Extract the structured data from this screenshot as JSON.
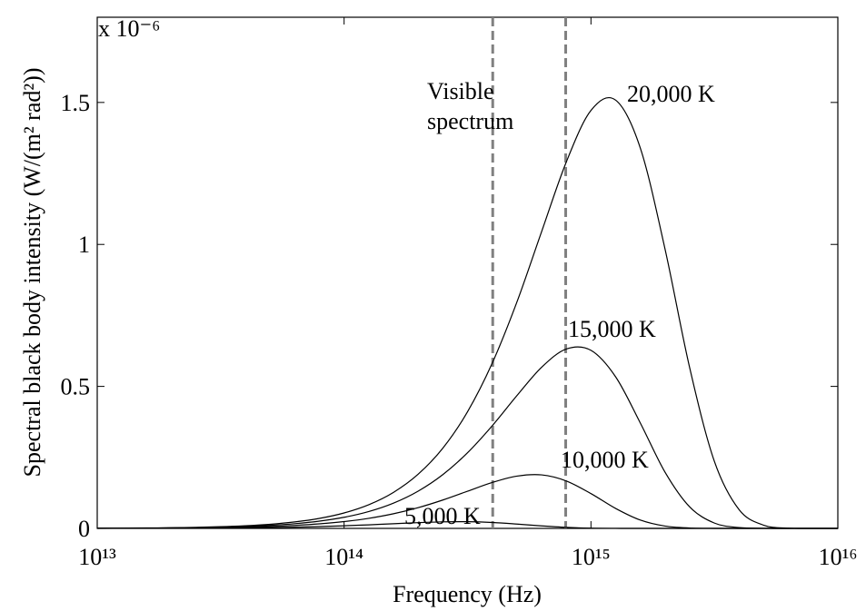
{
  "chart_data": {
    "type": "line",
    "xlabel": "Frequency (Hz)",
    "ylabel": "Spectral black body intensity (W/(m² rad²))",
    "y_multiplier": "x 10⁻⁶",
    "xscale": "log",
    "xlim": [
      10000000000000.0,
      1e+16
    ],
    "xticks": [
      {
        "value": 10000000000000.0,
        "label": "10¹³"
      },
      {
        "value": 100000000000000.0,
        "label": "10¹⁴"
      },
      {
        "value": 1000000000000000.0,
        "label": "10¹⁵"
      },
      {
        "value": 1e+16,
        "label": "10¹⁶"
      }
    ],
    "ylim": [
      0,
      1.8
    ],
    "yticks": [
      0,
      0.5,
      1,
      1.5
    ],
    "x": [
      10000000000000.0,
      12590000000000.0,
      15850000000000.0,
      19950000000000.0,
      25120000000000.0,
      31620000000000.0,
      39810000000000.0,
      50120000000000.0,
      63100000000000.0,
      79430000000000.0,
      100000000000000.0,
      125900000000000.0,
      158500000000000.0,
      199500000000000.0,
      251200000000000.0,
      316200000000000.0,
      398100000000000.0,
      501200000000000.0,
      631000000000000.0,
      794300000000000.0,
      1000000000000000.0,
      1259000000000000.0,
      1585000000000000.0,
      1995000000000000.0,
      2512000000000000.0,
      3162000000000000.0,
      3981000000000000.0,
      5012000000000000.0,
      6310000000000000.0,
      7943000000000000.0,
      1e+16
    ],
    "series": [
      {
        "name": "20,000 K",
        "color": "#000000",
        "values": [
          0.0006,
          0.001,
          0.0015,
          0.0024,
          0.0038,
          0.0059,
          0.0093,
          0.0145,
          0.0227,
          0.0352,
          0.0544,
          0.0834,
          0.1268,
          0.1907,
          0.2826,
          0.4105,
          0.5817,
          0.797,
          1.045,
          1.29,
          1.472,
          1.508,
          1.339,
          0.984,
          0.565,
          0.236,
          0.066,
          0.0111,
          0.001,
          0,
          0
        ]
      },
      {
        "name": "15,000 K",
        "color": "#000000",
        "values": [
          0.0005,
          0.0007,
          0.0011,
          0.0018,
          0.0028,
          0.0044,
          0.0068,
          0.0107,
          0.0166,
          0.0255,
          0.0391,
          0.0593,
          0.0889,
          0.1311,
          0.1894,
          0.2664,
          0.3614,
          0.4675,
          0.5674,
          0.6317,
          0.627,
          0.5336,
          0.3709,
          0.1981,
          0.0756,
          0.0188,
          0.0027,
          0.0002,
          0,
          0,
          0
        ]
      },
      {
        "name": "10,000 K",
        "color": "#000000",
        "values": [
          0.0003,
          0.0005,
          0.0007,
          0.0012,
          0.0018,
          0.0028,
          0.0044,
          0.0068,
          0.0105,
          0.0159,
          0.0239,
          0.0354,
          0.0515,
          0.073,
          0.0999,
          0.1309,
          0.1616,
          0.1841,
          0.1884,
          0.167,
          0.1225,
          0.0701,
          0.0292,
          0.0081,
          0.0014,
          0.0001,
          0,
          0,
          0,
          0,
          0
        ]
      },
      {
        "name": "5,000 K",
        "color": "#000000",
        "values": [
          0.0001,
          0.0002,
          0.0004,
          0.0006,
          0.0009,
          0.0013,
          0.002,
          0.003,
          0.0044,
          0.0065,
          0.0092,
          0.0125,
          0.0164,
          0.0202,
          0.023,
          0.0235,
          0.0208,
          0.0152,
          0.0087,
          0.0036,
          0.001,
          0.0002,
          0,
          0,
          0,
          0,
          0,
          0,
          0,
          0,
          0
        ]
      }
    ],
    "vlines": [
      {
        "x": 400000000000000.0,
        "color": "#808080"
      },
      {
        "x": 790000000000000.0,
        "color": "#808080"
      }
    ],
    "annotation": [
      "Visible",
      "spectrum"
    ]
  }
}
